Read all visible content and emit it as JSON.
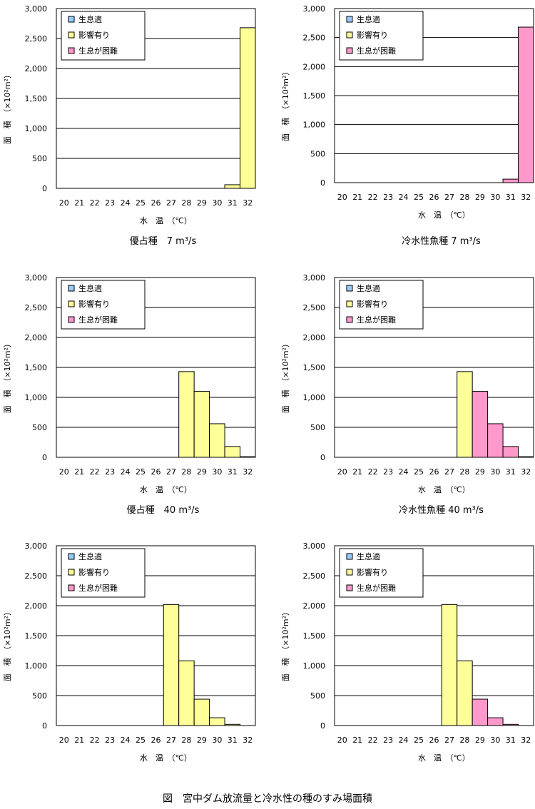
{
  "figure_caption": "図　宮中ダム放流量と冷水性の種のすみ場面積",
  "common": {
    "legend": [
      "生息適",
      "影響有り",
      "生息が困難"
    ],
    "legend_colors": [
      "#99ccff",
      "#ffff99",
      "#ff99cc"
    ],
    "ylabel": "面　積　（×10²m²）",
    "xlabel": "水　温　（℃）",
    "yticks": [
      "0",
      "500",
      "1,000",
      "1,500",
      "2,000",
      "2,500",
      "3,000"
    ],
    "categories": [
      "20",
      "21",
      "22",
      "23",
      "24",
      "25",
      "26",
      "27",
      "28",
      "29",
      "30",
      "31",
      "32"
    ]
  },
  "chart_data": [
    {
      "type": "bar",
      "title": "優占種　7 m³/s",
      "ylim": [
        0,
        3000
      ],
      "categories": [
        "20",
        "21",
        "22",
        "23",
        "24",
        "25",
        "26",
        "27",
        "28",
        "29",
        "30",
        "31",
        "32"
      ],
      "values": [
        0,
        0,
        0,
        0,
        0,
        0,
        0,
        0,
        0,
        0,
        0,
        60,
        2680
      ],
      "classes": [
        "生息が困難",
        "生息が困難",
        "生息が困難",
        "生息が困難",
        "生息が困難",
        "生息が困難",
        "生息が困難",
        "影響有り",
        "影響有り",
        "影響有り",
        "影響有り",
        "影響有り",
        "影響有り"
      ]
    },
    {
      "type": "bar",
      "title": "冷水性魚種 7 m³/s",
      "ylim": [
        0,
        3000
      ],
      "categories": [
        "20",
        "21",
        "22",
        "23",
        "24",
        "25",
        "26",
        "27",
        "28",
        "29",
        "30",
        "31",
        "32"
      ],
      "values": [
        0,
        0,
        0,
        0,
        0,
        0,
        0,
        0,
        0,
        0,
        0,
        60,
        2680
      ],
      "classes": [
        "生息が困難",
        "生息が困難",
        "生息が困難",
        "生息が困難",
        "生息が困難",
        "生息が困難",
        "生息が困難",
        "影響有り",
        "影響有り",
        "生息が困難",
        "生息が困難",
        "生息が困難",
        "生息が困難"
      ]
    },
    {
      "type": "bar",
      "title": "優占種　40 m³/s",
      "ylim": [
        0,
        3000
      ],
      "categories": [
        "20",
        "21",
        "22",
        "23",
        "24",
        "25",
        "26",
        "27",
        "28",
        "29",
        "30",
        "31",
        "32"
      ],
      "values": [
        0,
        0,
        0,
        0,
        0,
        0,
        0,
        0,
        1430,
        1100,
        560,
        180,
        10
      ],
      "classes": [
        "生息が困難",
        "生息が困難",
        "生息が困難",
        "生息が困難",
        "生息が困難",
        "生息が困難",
        "生息が困難",
        "影響有り",
        "影響有り",
        "影響有り",
        "影響有り",
        "影響有り",
        "影響有り"
      ]
    },
    {
      "type": "bar",
      "title": "冷水性魚種 40 m³/s",
      "ylim": [
        0,
        3000
      ],
      "categories": [
        "20",
        "21",
        "22",
        "23",
        "24",
        "25",
        "26",
        "27",
        "28",
        "29",
        "30",
        "31",
        "32"
      ],
      "values": [
        0,
        0,
        0,
        0,
        0,
        0,
        0,
        0,
        1430,
        1100,
        560,
        180,
        10
      ],
      "classes": [
        "生息が困難",
        "生息が困難",
        "生息が困難",
        "生息が困難",
        "生息が困難",
        "生息が困難",
        "生息が困難",
        "影響有り",
        "影響有り",
        "生息が困難",
        "生息が困難",
        "生息が困難",
        "生息が困難"
      ]
    },
    {
      "type": "bar",
      "title": "",
      "ylim": [
        0,
        3000
      ],
      "categories": [
        "20",
        "21",
        "22",
        "23",
        "24",
        "25",
        "26",
        "27",
        "28",
        "29",
        "30",
        "31",
        "32"
      ],
      "values": [
        0,
        0,
        0,
        0,
        0,
        0,
        0,
        2020,
        1080,
        440,
        130,
        20,
        0
      ],
      "classes": [
        "生息が困難",
        "生息が困難",
        "生息が困難",
        "生息が困難",
        "生息が困難",
        "生息が困難",
        "生息が困難",
        "影響有り",
        "影響有り",
        "影響有り",
        "影響有り",
        "影響有り",
        "影響有り"
      ]
    },
    {
      "type": "bar",
      "title": "",
      "ylim": [
        0,
        3000
      ],
      "categories": [
        "20",
        "21",
        "22",
        "23",
        "24",
        "25",
        "26",
        "27",
        "28",
        "29",
        "30",
        "31",
        "32"
      ],
      "values": [
        0,
        0,
        0,
        0,
        0,
        0,
        0,
        2020,
        1080,
        440,
        130,
        20,
        0
      ],
      "classes": [
        "生息が困難",
        "生息が困難",
        "生息が困難",
        "生息が困難",
        "生息が困難",
        "生息が困難",
        "生息が困難",
        "影響有り",
        "影響有り",
        "生息が困難",
        "生息が困難",
        "生息が困難",
        "生息が困難"
      ]
    }
  ]
}
